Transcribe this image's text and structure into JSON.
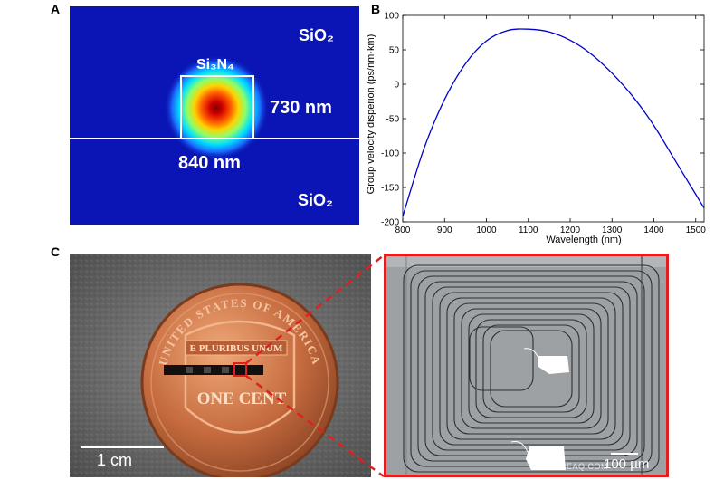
{
  "panels": {
    "a": "A",
    "b": "B",
    "c": "C"
  },
  "panel_a": {
    "cladding_top": "SiO₂",
    "cladding_bottom": "SiO₂",
    "core_material": "Si₃N₄",
    "height_label": "730 nm",
    "width_label": "840 nm",
    "colors": {
      "background": "#0b14b4",
      "field_peak": "#8b0000"
    }
  },
  "chart_data": {
    "type": "line",
    "xlabel": "Wavelength (nm)",
    "ylabel": "Group velocity disperion (ps/nm·km)",
    "xlim": [
      800,
      1520
    ],
    "ylim": [
      -200,
      100
    ],
    "xticks": [
      800,
      900,
      1000,
      1100,
      1200,
      1300,
      1400,
      1500
    ],
    "yticks": [
      -200,
      -150,
      -100,
      -50,
      0,
      50,
      100
    ],
    "grid": false,
    "series": [
      {
        "color": "#0000cc",
        "x": [
          800,
          850,
          900,
          950,
          1000,
          1050,
          1100,
          1150,
          1200,
          1250,
          1300,
          1350,
          1400,
          1450,
          1500,
          1520
        ],
        "y": [
          -192,
          -95,
          -22,
          30,
          63,
          78,
          80,
          76,
          64,
          44,
          16,
          -18,
          -60,
          -110,
          -160,
          -180
        ]
      }
    ]
  },
  "panel_c": {
    "scale_photo": "1 cm",
    "scale_micro": "100 µm",
    "coin_top_text": "UNITED STATES OF AMERICA",
    "coin_banner": "E PLURIBUS UNUM",
    "coin_value": "ONE CENT",
    "watermark": "SCIENCEAQ.COM",
    "colors": {
      "highlight": "#e02020"
    }
  }
}
